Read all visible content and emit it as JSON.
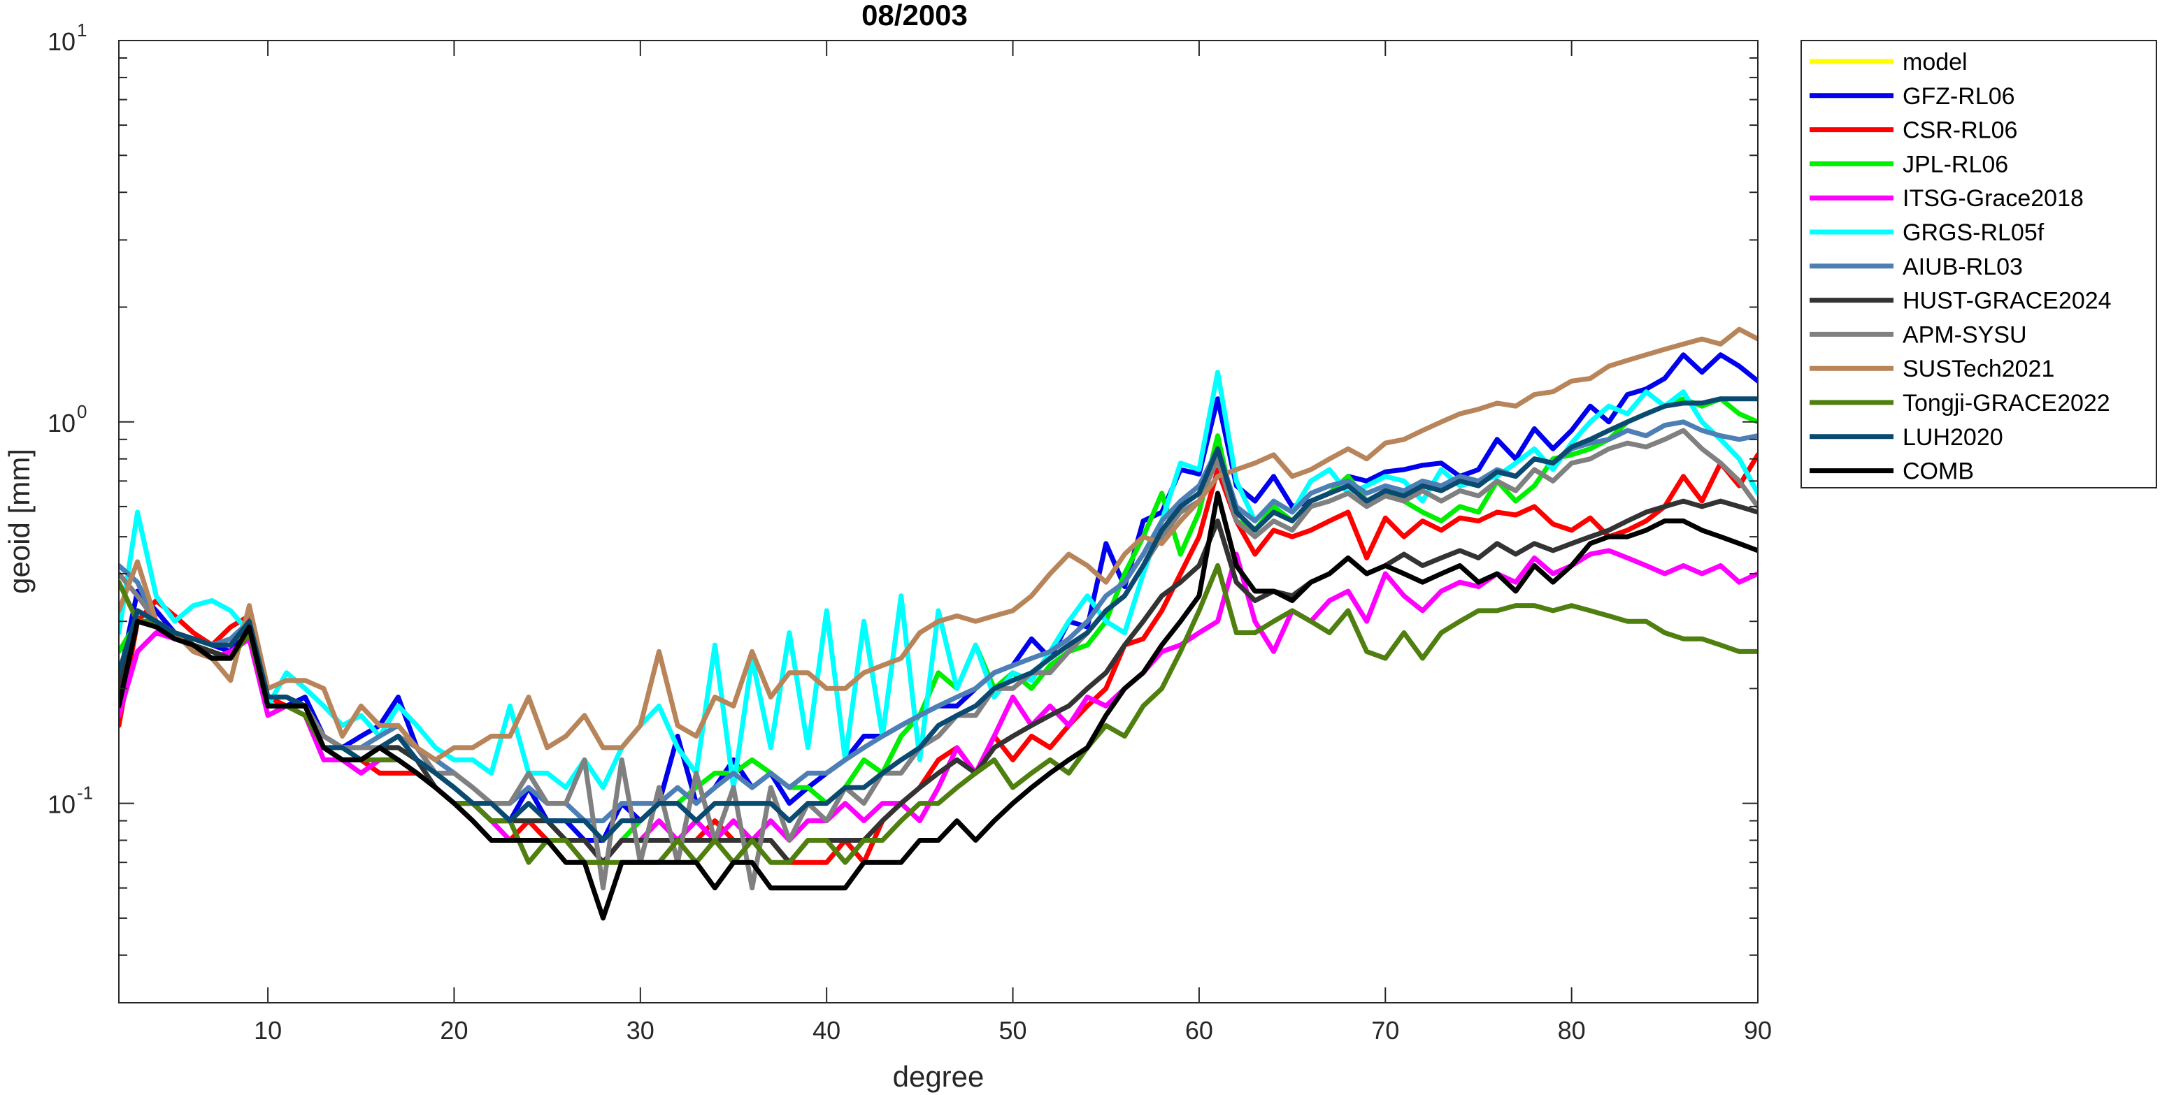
{
  "chart_data": {
    "type": "line",
    "title": "08/2003",
    "xlabel": "degree",
    "ylabel": "geoid [mm]",
    "xlim": [
      2,
      90
    ],
    "ylim": [
      0.03,
      10
    ],
    "yscale": "log",
    "xticks": [
      10,
      20,
      30,
      40,
      50,
      60,
      70,
      80,
      90
    ],
    "xtick_labels": [
      "10",
      "20",
      "30",
      "40",
      "50",
      "60",
      "70",
      "80",
      "90"
    ],
    "yticks": [
      0.1,
      1,
      10
    ],
    "ytick_labels": [
      {
        "base": "10",
        "exp": "-1"
      },
      {
        "base": "10",
        "exp": "0"
      },
      {
        "base": "10",
        "exp": "1"
      }
    ],
    "grid": false,
    "legend_position": "outside-top-right",
    "x_start": 2,
    "series": [
      {
        "name": "model",
        "color": "#ffff00",
        "values": []
      },
      {
        "name": "GFZ-RL06",
        "color": "#0000ee",
        "values": [
          0.21,
          0.36,
          0.32,
          0.28,
          0.27,
          0.26,
          0.25,
          0.3,
          0.18,
          0.18,
          0.19,
          0.15,
          0.14,
          0.15,
          0.16,
          0.19,
          0.14,
          0.12,
          0.11,
          0.1,
          0.09,
          0.09,
          0.11,
          0.09,
          0.09,
          0.08,
          0.08,
          0.1,
          0.09,
          0.1,
          0.15,
          0.1,
          0.11,
          0.13,
          0.11,
          0.12,
          0.1,
          0.11,
          0.12,
          0.13,
          0.15,
          0.15,
          0.16,
          0.17,
          0.18,
          0.18,
          0.2,
          0.22,
          0.23,
          0.27,
          0.24,
          0.3,
          0.29,
          0.48,
          0.37,
          0.55,
          0.58,
          0.75,
          0.73,
          1.15,
          0.68,
          0.62,
          0.72,
          0.6,
          0.62,
          0.65,
          0.72,
          0.7,
          0.74,
          0.75,
          0.77,
          0.78,
          0.72,
          0.75,
          0.9,
          0.8,
          0.96,
          0.85,
          0.95,
          1.1,
          1.0,
          1.18,
          1.22,
          1.3,
          1.5,
          1.35,
          1.5,
          1.4,
          1.28
        ]
      },
      {
        "name": "CSR-RL06",
        "color": "#ff0000",
        "values": [
          0.16,
          0.3,
          0.34,
          0.31,
          0.28,
          0.26,
          0.29,
          0.31,
          0.19,
          0.18,
          0.18,
          0.14,
          0.13,
          0.13,
          0.12,
          0.12,
          0.12,
          0.11,
          0.1,
          0.09,
          0.08,
          0.08,
          0.09,
          0.08,
          0.08,
          0.07,
          0.07,
          0.08,
          0.08,
          0.08,
          0.08,
          0.08,
          0.09,
          0.08,
          0.08,
          0.08,
          0.07,
          0.07,
          0.07,
          0.08,
          0.07,
          0.09,
          0.1,
          0.11,
          0.13,
          0.14,
          0.12,
          0.15,
          0.13,
          0.15,
          0.14,
          0.16,
          0.18,
          0.2,
          0.26,
          0.27,
          0.32,
          0.4,
          0.5,
          0.75,
          0.55,
          0.45,
          0.52,
          0.5,
          0.52,
          0.55,
          0.58,
          0.44,
          0.56,
          0.5,
          0.55,
          0.52,
          0.56,
          0.55,
          0.58,
          0.57,
          0.6,
          0.54,
          0.52,
          0.56,
          0.5,
          0.52,
          0.55,
          0.6,
          0.72,
          0.62,
          0.78,
          0.68,
          0.82
        ]
      },
      {
        "name": "JPL-RL06",
        "color": "#00ee00",
        "values": [
          0.25,
          0.3,
          0.3,
          0.28,
          0.26,
          0.25,
          0.24,
          0.28,
          0.18,
          0.18,
          0.17,
          0.14,
          0.14,
          0.13,
          0.14,
          0.14,
          0.13,
          0.12,
          0.11,
          0.1,
          0.09,
          0.09,
          0.09,
          0.09,
          0.08,
          0.08,
          0.07,
          0.08,
          0.09,
          0.1,
          0.1,
          0.11,
          0.12,
          0.12,
          0.13,
          0.12,
          0.11,
          0.11,
          0.1,
          0.11,
          0.13,
          0.12,
          0.15,
          0.17,
          0.22,
          0.2,
          0.26,
          0.2,
          0.22,
          0.2,
          0.23,
          0.25,
          0.26,
          0.3,
          0.4,
          0.5,
          0.65,
          0.45,
          0.58,
          0.92,
          0.55,
          0.52,
          0.6,
          0.55,
          0.62,
          0.65,
          0.72,
          0.62,
          0.65,
          0.62,
          0.58,
          0.55,
          0.6,
          0.58,
          0.7,
          0.62,
          0.68,
          0.8,
          0.82,
          0.85,
          0.9,
          1.0,
          1.05,
          1.1,
          1.15,
          1.1,
          1.15,
          1.05,
          1.0
        ]
      },
      {
        "name": "ITSG-Grace2018",
        "color": "#ff00ff",
        "values": [
          0.17,
          0.25,
          0.28,
          0.27,
          0.26,
          0.24,
          0.25,
          0.27,
          0.17,
          0.18,
          0.17,
          0.13,
          0.13,
          0.12,
          0.13,
          0.13,
          0.12,
          0.11,
          0.1,
          0.1,
          0.09,
          0.08,
          0.08,
          0.08,
          0.08,
          0.08,
          0.07,
          0.08,
          0.08,
          0.09,
          0.08,
          0.09,
          0.08,
          0.09,
          0.08,
          0.09,
          0.08,
          0.09,
          0.09,
          0.1,
          0.09,
          0.1,
          0.1,
          0.09,
          0.11,
          0.14,
          0.12,
          0.15,
          0.19,
          0.16,
          0.18,
          0.16,
          0.19,
          0.18,
          0.2,
          0.22,
          0.25,
          0.26,
          0.28,
          0.3,
          0.45,
          0.3,
          0.25,
          0.32,
          0.3,
          0.34,
          0.36,
          0.3,
          0.4,
          0.35,
          0.32,
          0.36,
          0.38,
          0.37,
          0.4,
          0.38,
          0.44,
          0.4,
          0.42,
          0.45,
          0.46,
          0.44,
          0.42,
          0.4,
          0.42,
          0.4,
          0.42,
          0.38,
          0.4
        ]
      },
      {
        "name": "GRGS-RL05f",
        "color": "#00ffff",
        "values": [
          0.28,
          0.58,
          0.35,
          0.3,
          0.33,
          0.34,
          0.32,
          0.28,
          0.18,
          0.22,
          0.2,
          0.18,
          0.16,
          0.17,
          0.15,
          0.18,
          0.16,
          0.14,
          0.13,
          0.13,
          0.12,
          0.18,
          0.12,
          0.12,
          0.11,
          0.13,
          0.11,
          0.14,
          0.16,
          0.18,
          0.14,
          0.12,
          0.26,
          0.11,
          0.24,
          0.14,
          0.28,
          0.14,
          0.32,
          0.13,
          0.3,
          0.15,
          0.35,
          0.13,
          0.32,
          0.2,
          0.26,
          0.19,
          0.22,
          0.21,
          0.25,
          0.3,
          0.35,
          0.3,
          0.28,
          0.4,
          0.55,
          0.78,
          0.75,
          1.35,
          0.7,
          0.55,
          0.62,
          0.58,
          0.7,
          0.75,
          0.65,
          0.68,
          0.72,
          0.7,
          0.62,
          0.75,
          0.68,
          0.7,
          0.72,
          0.78,
          0.85,
          0.75,
          0.88,
          1.0,
          1.1,
          1.05,
          1.2,
          1.1,
          1.2,
          1.0,
          0.9,
          0.8,
          0.65
        ]
      },
      {
        "name": "AIUB-RL03",
        "color": "#4d7fb5",
        "values": [
          0.42,
          0.38,
          0.3,
          0.28,
          0.27,
          0.26,
          0.27,
          0.3,
          0.19,
          0.19,
          0.18,
          0.15,
          0.14,
          0.14,
          0.15,
          0.16,
          0.14,
          0.13,
          0.12,
          0.11,
          0.1,
          0.1,
          0.11,
          0.1,
          0.1,
          0.09,
          0.09,
          0.1,
          0.1,
          0.1,
          0.11,
          0.1,
          0.11,
          0.12,
          0.11,
          0.12,
          0.11,
          0.12,
          0.12,
          0.13,
          0.14,
          0.15,
          0.16,
          0.17,
          0.18,
          0.19,
          0.2,
          0.22,
          0.23,
          0.24,
          0.25,
          0.27,
          0.3,
          0.35,
          0.38,
          0.45,
          0.55,
          0.62,
          0.68,
          0.85,
          0.6,
          0.55,
          0.62,
          0.58,
          0.65,
          0.68,
          0.7,
          0.65,
          0.68,
          0.66,
          0.7,
          0.68,
          0.72,
          0.7,
          0.75,
          0.72,
          0.8,
          0.78,
          0.85,
          0.88,
          0.9,
          0.95,
          0.92,
          0.98,
          1.0,
          0.95,
          0.92,
          0.9,
          0.92
        ]
      },
      {
        "name": "HUST-GRACE2024",
        "color": "#333333",
        "values": [
          0.2,
          0.32,
          0.3,
          0.28,
          0.26,
          0.25,
          0.24,
          0.28,
          0.18,
          0.18,
          0.18,
          0.14,
          0.13,
          0.13,
          0.14,
          0.14,
          0.13,
          0.11,
          0.1,
          0.1,
          0.09,
          0.09,
          0.09,
          0.09,
          0.08,
          0.08,
          0.07,
          0.08,
          0.08,
          0.08,
          0.08,
          0.08,
          0.08,
          0.08,
          0.08,
          0.08,
          0.07,
          0.08,
          0.08,
          0.08,
          0.08,
          0.09,
          0.1,
          0.11,
          0.12,
          0.13,
          0.12,
          0.14,
          0.15,
          0.16,
          0.17,
          0.18,
          0.2,
          0.22,
          0.26,
          0.3,
          0.35,
          0.38,
          0.42,
          0.55,
          0.38,
          0.34,
          0.36,
          0.35,
          0.38,
          0.4,
          0.44,
          0.4,
          0.42,
          0.45,
          0.42,
          0.44,
          0.46,
          0.44,
          0.48,
          0.45,
          0.48,
          0.46,
          0.48,
          0.5,
          0.52,
          0.55,
          0.58,
          0.6,
          0.62,
          0.6,
          0.62,
          0.6,
          0.58
        ]
      },
      {
        "name": "APM-SYSU",
        "color": "#808080",
        "values": [
          0.4,
          0.35,
          0.3,
          0.28,
          0.27,
          0.26,
          0.26,
          0.3,
          0.19,
          0.19,
          0.18,
          0.15,
          0.14,
          0.14,
          0.14,
          0.15,
          0.14,
          0.12,
          0.12,
          0.11,
          0.1,
          0.1,
          0.12,
          0.1,
          0.1,
          0.13,
          0.06,
          0.13,
          0.07,
          0.11,
          0.07,
          0.12,
          0.08,
          0.11,
          0.06,
          0.11,
          0.08,
          0.1,
          0.09,
          0.11,
          0.1,
          0.12,
          0.12,
          0.14,
          0.15,
          0.17,
          0.17,
          0.2,
          0.2,
          0.22,
          0.22,
          0.25,
          0.28,
          0.32,
          0.35,
          0.42,
          0.5,
          0.58,
          0.62,
          0.8,
          0.55,
          0.5,
          0.55,
          0.52,
          0.6,
          0.62,
          0.65,
          0.6,
          0.64,
          0.62,
          0.66,
          0.62,
          0.66,
          0.64,
          0.7,
          0.66,
          0.75,
          0.7,
          0.78,
          0.8,
          0.85,
          0.88,
          0.86,
          0.9,
          0.95,
          0.85,
          0.78,
          0.7,
          0.6
        ]
      },
      {
        "name": "SUSTech2021",
        "color": "#b8845a",
        "values": [
          0.32,
          0.43,
          0.3,
          0.28,
          0.25,
          0.24,
          0.21,
          0.33,
          0.2,
          0.21,
          0.21,
          0.2,
          0.15,
          0.18,
          0.16,
          0.16,
          0.14,
          0.13,
          0.14,
          0.14,
          0.15,
          0.15,
          0.19,
          0.14,
          0.15,
          0.17,
          0.14,
          0.14,
          0.16,
          0.25,
          0.16,
          0.15,
          0.19,
          0.18,
          0.25,
          0.19,
          0.22,
          0.22,
          0.2,
          0.2,
          0.22,
          0.23,
          0.24,
          0.28,
          0.3,
          0.31,
          0.3,
          0.31,
          0.32,
          0.35,
          0.4,
          0.45,
          0.42,
          0.38,
          0.45,
          0.5,
          0.48,
          0.55,
          0.62,
          0.72,
          0.75,
          0.78,
          0.82,
          0.72,
          0.75,
          0.8,
          0.85,
          0.8,
          0.88,
          0.9,
          0.95,
          1.0,
          1.05,
          1.08,
          1.12,
          1.1,
          1.18,
          1.2,
          1.28,
          1.3,
          1.4,
          1.45,
          1.5,
          1.55,
          1.6,
          1.65,
          1.6,
          1.75,
          1.65
        ]
      },
      {
        "name": "Tongji-GRACE2022",
        "color": "#4f7f0f",
        "values": [
          0.38,
          0.3,
          0.3,
          0.27,
          0.26,
          0.24,
          0.24,
          0.28,
          0.18,
          0.18,
          0.17,
          0.14,
          0.13,
          0.13,
          0.13,
          0.13,
          0.12,
          0.11,
          0.1,
          0.1,
          0.09,
          0.09,
          0.07,
          0.08,
          0.08,
          0.07,
          0.07,
          0.07,
          0.07,
          0.07,
          0.08,
          0.07,
          0.08,
          0.07,
          0.08,
          0.07,
          0.07,
          0.08,
          0.08,
          0.07,
          0.08,
          0.08,
          0.09,
          0.1,
          0.1,
          0.11,
          0.12,
          0.13,
          0.11,
          0.12,
          0.13,
          0.12,
          0.14,
          0.16,
          0.15,
          0.18,
          0.2,
          0.25,
          0.32,
          0.42,
          0.28,
          0.28,
          0.3,
          0.32,
          0.3,
          0.28,
          0.32,
          0.25,
          0.24,
          0.28,
          0.24,
          0.28,
          0.3,
          0.32,
          0.32,
          0.33,
          0.33,
          0.32,
          0.33,
          0.32,
          0.31,
          0.3,
          0.3,
          0.28,
          0.27,
          0.27,
          0.26,
          0.25,
          0.25
        ]
      },
      {
        "name": "LUH2020",
        "color": "#0a4a70",
        "values": [
          0.22,
          0.32,
          0.3,
          0.28,
          0.27,
          0.26,
          0.26,
          0.3,
          0.19,
          0.19,
          0.18,
          0.14,
          0.14,
          0.13,
          0.14,
          0.15,
          0.13,
          0.12,
          0.11,
          0.1,
          0.1,
          0.09,
          0.1,
          0.09,
          0.09,
          0.09,
          0.08,
          0.09,
          0.09,
          0.1,
          0.1,
          0.09,
          0.1,
          0.1,
          0.1,
          0.1,
          0.09,
          0.1,
          0.1,
          0.11,
          0.11,
          0.12,
          0.13,
          0.14,
          0.16,
          0.17,
          0.18,
          0.2,
          0.21,
          0.22,
          0.24,
          0.26,
          0.28,
          0.32,
          0.35,
          0.42,
          0.52,
          0.6,
          0.65,
          0.85,
          0.58,
          0.52,
          0.58,
          0.55,
          0.62,
          0.65,
          0.68,
          0.62,
          0.66,
          0.64,
          0.68,
          0.66,
          0.7,
          0.68,
          0.74,
          0.72,
          0.8,
          0.78,
          0.86,
          0.9,
          0.95,
          1.0,
          1.05,
          1.1,
          1.12,
          1.12,
          1.15,
          1.15,
          1.15
        ]
      },
      {
        "name": "COMB",
        "color": "#000000",
        "values": [
          0.18,
          0.3,
          0.29,
          0.27,
          0.26,
          0.24,
          0.24,
          0.29,
          0.18,
          0.18,
          0.18,
          0.14,
          0.13,
          0.13,
          0.14,
          0.13,
          0.12,
          0.11,
          0.1,
          0.09,
          0.08,
          0.08,
          0.08,
          0.08,
          0.07,
          0.07,
          0.05,
          0.07,
          0.07,
          0.07,
          0.07,
          0.07,
          0.06,
          0.07,
          0.07,
          0.06,
          0.06,
          0.06,
          0.06,
          0.06,
          0.07,
          0.07,
          0.07,
          0.08,
          0.08,
          0.09,
          0.08,
          0.09,
          0.1,
          0.11,
          0.12,
          0.13,
          0.14,
          0.17,
          0.2,
          0.22,
          0.26,
          0.3,
          0.35,
          0.65,
          0.42,
          0.36,
          0.36,
          0.34,
          0.38,
          0.4,
          0.44,
          0.4,
          0.42,
          0.4,
          0.38,
          0.4,
          0.42,
          0.38,
          0.4,
          0.36,
          0.42,
          0.38,
          0.42,
          0.48,
          0.5,
          0.5,
          0.52,
          0.55,
          0.55,
          0.52,
          0.5,
          0.48,
          0.46
        ]
      }
    ]
  }
}
